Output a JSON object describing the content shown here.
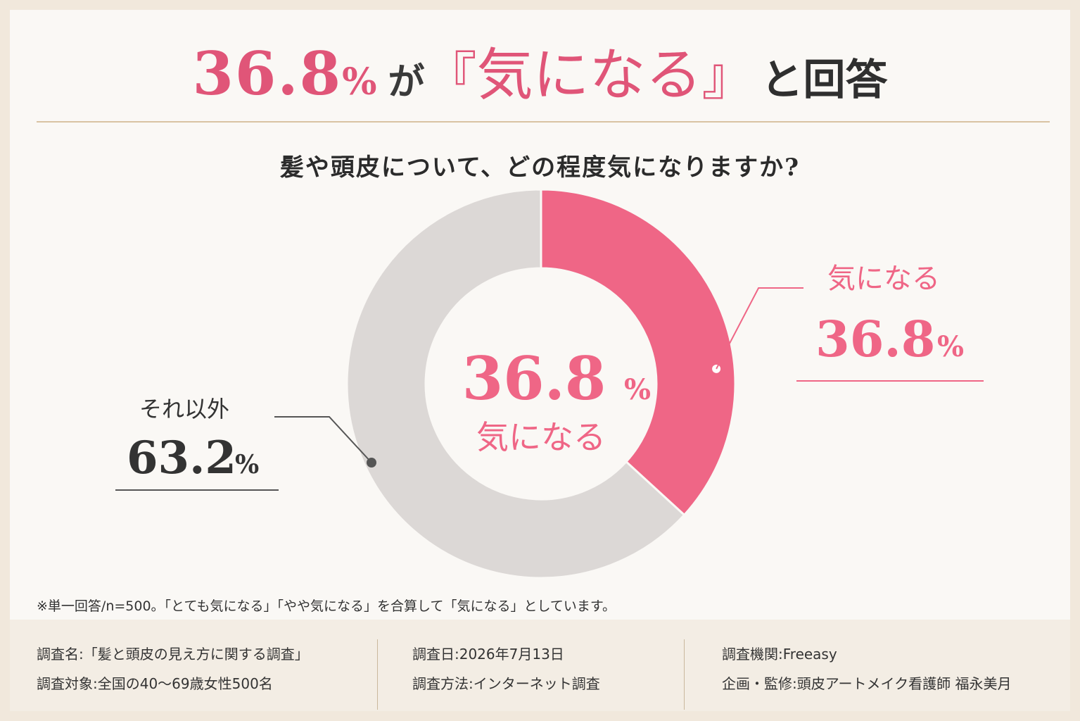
{
  "headline": {
    "number": "36.8",
    "percent": "%",
    "particle": "が",
    "open_bracket": "『",
    "keyword": "気になる",
    "close_bracket": "』",
    "tail": "と回答"
  },
  "colors": {
    "accent": "#ef6686",
    "other": "#dcd8d6",
    "text": "#2b2b2b",
    "rule": "#d9c3a3"
  },
  "chart_data": {
    "type": "pie",
    "donut": true,
    "title": "髪や頭皮について、どの程度気になりますか?",
    "start_angle": "12 o'clock, clockwise",
    "slices": [
      {
        "label": "気になる",
        "value": 36.8,
        "unit": "%",
        "color": "#ef6686"
      },
      {
        "label": "それ以外",
        "value": 63.2,
        "unit": "%",
        "color": "#dcd8d6"
      }
    ],
    "center_value": "36.8",
    "center_unit": "%",
    "center_label": "気になる"
  },
  "note": "※単一回答/n=500。「とても気になる」「やや気になる」を合算して「気になる」としています。",
  "footer": {
    "col1": [
      "調査名:「髪と頭皮の見え方に関する調査」",
      "調査対象:全国の40〜69歳女性500名"
    ],
    "col2": [
      "調査日:2026年7月13日",
      "調査方法:インターネット調査"
    ],
    "col3": [
      "調査機関:Freeasy",
      "企画・監修:頭皮アートメイク看護師 福永美月"
    ]
  }
}
